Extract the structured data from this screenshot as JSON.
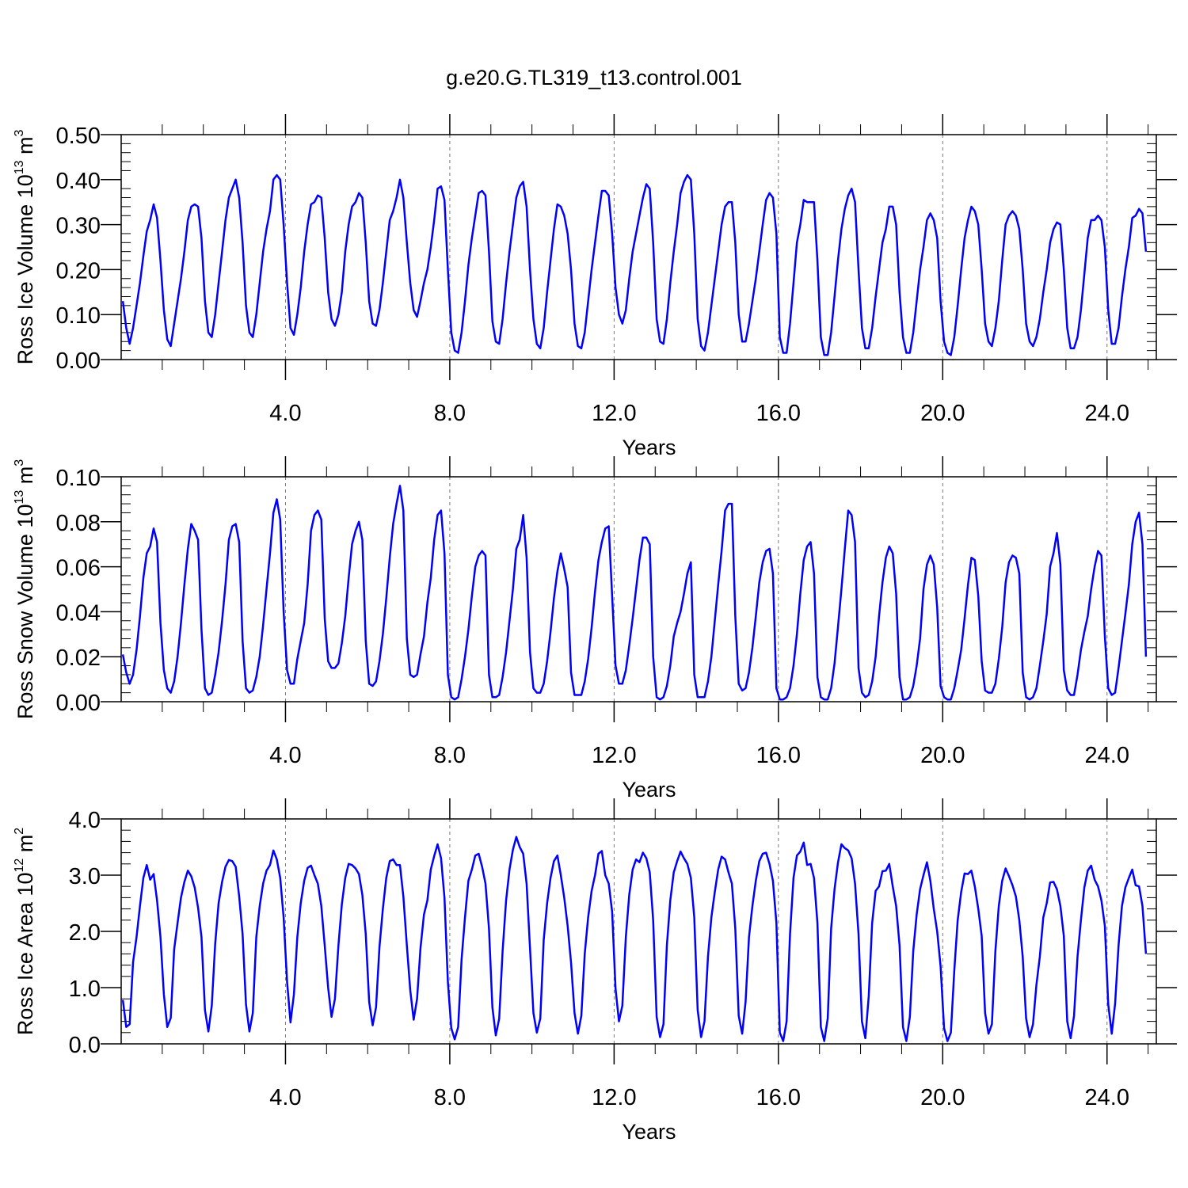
{
  "title": "g.e20.G.TL319_t13.control.001",
  "line_color": "#0000ff",
  "chart_data": [
    {
      "type": "line",
      "ylabel_main": "Ross Ice Volume 10",
      "ylabel_exp": "13",
      "ylabel_unit": " m",
      "ylabel_unit_exp": "3",
      "xlabel": "Years",
      "xlim": [
        0,
        25.2
      ],
      "ylim": [
        0,
        0.5
      ],
      "x_ticks": [
        4,
        8,
        12,
        16,
        20,
        24
      ],
      "x_tick_labels": [
        "4.0",
        "8.0",
        "12.0",
        "16.0",
        "20.0",
        "24.0"
      ],
      "y_ticks": [
        0,
        0.1,
        0.2,
        0.3,
        0.4,
        0.5
      ],
      "y_tick_labels": [
        "0.00",
        "0.10",
        "0.20",
        "0.30",
        "0.40",
        "0.50"
      ],
      "x_start": 0.04,
      "x_step": 0.0833,
      "values": [
        0.13,
        0.07,
        0.035,
        0.07,
        0.12,
        0.17,
        0.23,
        0.285,
        0.31,
        0.345,
        0.315,
        0.22,
        0.11,
        0.045,
        0.03,
        0.08,
        0.13,
        0.18,
        0.24,
        0.31,
        0.34,
        0.345,
        0.34,
        0.27,
        0.13,
        0.06,
        0.05,
        0.1,
        0.17,
        0.24,
        0.31,
        0.36,
        0.38,
        0.4,
        0.36,
        0.26,
        0.12,
        0.06,
        0.05,
        0.1,
        0.17,
        0.24,
        0.29,
        0.33,
        0.4,
        0.41,
        0.4,
        0.3,
        0.17,
        0.07,
        0.055,
        0.1,
        0.16,
        0.24,
        0.3,
        0.345,
        0.35,
        0.365,
        0.36,
        0.27,
        0.15,
        0.09,
        0.075,
        0.1,
        0.15,
        0.24,
        0.3,
        0.34,
        0.35,
        0.37,
        0.36,
        0.26,
        0.13,
        0.08,
        0.075,
        0.11,
        0.17,
        0.24,
        0.31,
        0.33,
        0.36,
        0.4,
        0.36,
        0.26,
        0.17,
        0.11,
        0.095,
        0.13,
        0.17,
        0.2,
        0.25,
        0.31,
        0.38,
        0.385,
        0.355,
        0.2,
        0.06,
        0.02,
        0.015,
        0.06,
        0.13,
        0.21,
        0.27,
        0.32,
        0.37,
        0.375,
        0.365,
        0.24,
        0.085,
        0.04,
        0.035,
        0.09,
        0.17,
        0.24,
        0.3,
        0.36,
        0.385,
        0.395,
        0.34,
        0.2,
        0.09,
        0.035,
        0.025,
        0.07,
        0.15,
        0.22,
        0.29,
        0.345,
        0.34,
        0.32,
        0.28,
        0.2,
        0.08,
        0.03,
        0.025,
        0.06,
        0.13,
        0.2,
        0.26,
        0.32,
        0.375,
        0.375,
        0.365,
        0.28,
        0.16,
        0.1,
        0.08,
        0.11,
        0.18,
        0.24,
        0.28,
        0.32,
        0.36,
        0.39,
        0.38,
        0.26,
        0.09,
        0.04,
        0.035,
        0.09,
        0.17,
        0.24,
        0.3,
        0.37,
        0.395,
        0.41,
        0.4,
        0.28,
        0.09,
        0.03,
        0.02,
        0.06,
        0.12,
        0.18,
        0.24,
        0.3,
        0.34,
        0.35,
        0.35,
        0.26,
        0.1,
        0.04,
        0.04,
        0.08,
        0.13,
        0.18,
        0.24,
        0.3,
        0.355,
        0.37,
        0.36,
        0.28,
        0.05,
        0.015,
        0.015,
        0.08,
        0.17,
        0.26,
        0.3,
        0.355,
        0.35,
        0.35,
        0.35,
        0.22,
        0.05,
        0.01,
        0.01,
        0.06,
        0.14,
        0.22,
        0.29,
        0.335,
        0.365,
        0.38,
        0.35,
        0.2,
        0.07,
        0.025,
        0.025,
        0.07,
        0.14,
        0.2,
        0.26,
        0.29,
        0.34,
        0.34,
        0.3,
        0.15,
        0.05,
        0.015,
        0.015,
        0.06,
        0.13,
        0.2,
        0.25,
        0.31,
        0.325,
        0.31,
        0.27,
        0.13,
        0.04,
        0.015,
        0.01,
        0.05,
        0.12,
        0.2,
        0.27,
        0.31,
        0.34,
        0.33,
        0.3,
        0.2,
        0.08,
        0.04,
        0.03,
        0.07,
        0.13,
        0.22,
        0.3,
        0.32,
        0.33,
        0.32,
        0.29,
        0.2,
        0.08,
        0.04,
        0.03,
        0.05,
        0.09,
        0.15,
        0.2,
        0.26,
        0.29,
        0.305,
        0.3,
        0.2,
        0.07,
        0.025,
        0.025,
        0.05,
        0.11,
        0.19,
        0.27,
        0.31,
        0.31,
        0.32,
        0.31,
        0.25,
        0.11,
        0.035,
        0.035,
        0.07,
        0.14,
        0.2,
        0.25,
        0.315,
        0.32,
        0.335,
        0.325,
        0.24
      ]
    },
    {
      "type": "line",
      "ylabel_main": "Ross Snow Volume 10",
      "ylabel_exp": "13",
      "ylabel_unit": " m",
      "ylabel_unit_exp": "3",
      "xlabel": "Years",
      "xlim": [
        0,
        25.2
      ],
      "ylim": [
        0,
        0.1
      ],
      "x_ticks": [
        4,
        8,
        12,
        16,
        20,
        24
      ],
      "x_tick_labels": [
        "4.0",
        "8.0",
        "12.0",
        "16.0",
        "20.0",
        "24.0"
      ],
      "y_ticks": [
        0,
        0.02,
        0.04,
        0.06,
        0.08,
        0.1
      ],
      "y_tick_labels": [
        "0.00",
        "0.02",
        "0.04",
        "0.06",
        "0.08",
        "0.10"
      ],
      "x_start": 0.04,
      "x_step": 0.0833,
      "values": [
        0.021,
        0.013,
        0.008,
        0.012,
        0.023,
        0.038,
        0.055,
        0.066,
        0.069,
        0.077,
        0.071,
        0.035,
        0.014,
        0.006,
        0.004,
        0.009,
        0.02,
        0.035,
        0.052,
        0.068,
        0.079,
        0.076,
        0.072,
        0.032,
        0.006,
        0.003,
        0.004,
        0.012,
        0.022,
        0.036,
        0.052,
        0.072,
        0.078,
        0.079,
        0.071,
        0.027,
        0.006,
        0.004,
        0.005,
        0.011,
        0.02,
        0.034,
        0.05,
        0.066,
        0.084,
        0.09,
        0.081,
        0.04,
        0.014,
        0.008,
        0.008,
        0.019,
        0.027,
        0.035,
        0.052,
        0.076,
        0.083,
        0.085,
        0.081,
        0.037,
        0.018,
        0.015,
        0.015,
        0.017,
        0.026,
        0.038,
        0.055,
        0.07,
        0.076,
        0.08,
        0.072,
        0.027,
        0.008,
        0.007,
        0.009,
        0.018,
        0.03,
        0.046,
        0.064,
        0.079,
        0.088,
        0.096,
        0.085,
        0.028,
        0.012,
        0.011,
        0.012,
        0.021,
        0.029,
        0.044,
        0.055,
        0.072,
        0.083,
        0.085,
        0.066,
        0.012,
        0.002,
        0.001,
        0.002,
        0.01,
        0.02,
        0.032,
        0.047,
        0.06,
        0.065,
        0.067,
        0.065,
        0.012,
        0.002,
        0.002,
        0.003,
        0.011,
        0.022,
        0.036,
        0.05,
        0.068,
        0.072,
        0.083,
        0.064,
        0.022,
        0.006,
        0.004,
        0.004,
        0.008,
        0.018,
        0.031,
        0.046,
        0.058,
        0.066,
        0.059,
        0.051,
        0.013,
        0.003,
        0.003,
        0.003,
        0.009,
        0.019,
        0.033,
        0.049,
        0.063,
        0.071,
        0.077,
        0.078,
        0.047,
        0.016,
        0.008,
        0.008,
        0.014,
        0.025,
        0.037,
        0.05,
        0.063,
        0.073,
        0.073,
        0.07,
        0.02,
        0.002,
        0.001,
        0.002,
        0.007,
        0.016,
        0.029,
        0.035,
        0.04,
        0.048,
        0.057,
        0.062,
        0.012,
        0.002,
        0.002,
        0.002,
        0.009,
        0.02,
        0.036,
        0.052,
        0.067,
        0.085,
        0.088,
        0.088,
        0.038,
        0.008,
        0.005,
        0.006,
        0.013,
        0.024,
        0.038,
        0.053,
        0.062,
        0.067,
        0.068,
        0.057,
        0.006,
        0.001,
        0.001,
        0.002,
        0.006,
        0.016,
        0.03,
        0.048,
        0.063,
        0.069,
        0.071,
        0.057,
        0.011,
        0.002,
        0.001,
        0.001,
        0.006,
        0.017,
        0.033,
        0.05,
        0.068,
        0.085,
        0.083,
        0.071,
        0.015,
        0.004,
        0.002,
        0.003,
        0.009,
        0.02,
        0.038,
        0.053,
        0.064,
        0.069,
        0.066,
        0.048,
        0.011,
        0.001,
        0.001,
        0.002,
        0.007,
        0.016,
        0.028,
        0.05,
        0.061,
        0.065,
        0.061,
        0.042,
        0.007,
        0.002,
        0.001,
        0.001,
        0.006,
        0.014,
        0.023,
        0.037,
        0.052,
        0.064,
        0.063,
        0.047,
        0.018,
        0.005,
        0.004,
        0.004,
        0.008,
        0.019,
        0.033,
        0.053,
        0.062,
        0.065,
        0.064,
        0.057,
        0.013,
        0.002,
        0.001,
        0.002,
        0.006,
        0.016,
        0.027,
        0.039,
        0.06,
        0.066,
        0.075,
        0.061,
        0.014,
        0.005,
        0.003,
        0.003,
        0.012,
        0.023,
        0.031,
        0.038,
        0.05,
        0.06,
        0.067,
        0.065,
        0.029,
        0.006,
        0.003,
        0.004,
        0.015,
        0.027,
        0.039,
        0.052,
        0.07,
        0.08,
        0.084,
        0.07,
        0.02
      ]
    },
    {
      "type": "line",
      "ylabel_main": "Ross Ice Area 10",
      "ylabel_exp": "12",
      "ylabel_unit": " m",
      "ylabel_unit_exp": "2",
      "xlabel": "Years",
      "xlim": [
        0,
        25.2
      ],
      "ylim": [
        0,
        4
      ],
      "x_ticks": [
        4,
        8,
        12,
        16,
        20,
        24
      ],
      "x_tick_labels": [
        "4.0",
        "8.0",
        "12.0",
        "16.0",
        "20.0",
        "24.0"
      ],
      "y_ticks": [
        0,
        1,
        2,
        3,
        4
      ],
      "y_tick_labels": [
        "0.0",
        "1.0",
        "2.0",
        "3.0",
        "4.0"
      ],
      "x_start": 0.04,
      "x_step": 0.0833,
      "values": [
        0.78,
        0.3,
        0.35,
        1.45,
        1.9,
        2.45,
        2.95,
        3.18,
        2.92,
        3.02,
        2.55,
        1.9,
        0.88,
        0.3,
        0.46,
        1.68,
        2.15,
        2.6,
        2.88,
        3.08,
        2.98,
        2.78,
        2.42,
        1.9,
        0.6,
        0.22,
        0.68,
        1.78,
        2.5,
        2.88,
        3.15,
        3.27,
        3.25,
        3.15,
        2.62,
        1.95,
        0.7,
        0.22,
        0.55,
        1.9,
        2.45,
        2.85,
        3.08,
        3.18,
        3.44,
        3.28,
        2.95,
        2.25,
        1.1,
        0.38,
        0.88,
        1.9,
        2.5,
        2.9,
        3.13,
        3.17,
        3.0,
        2.85,
        2.45,
        1.75,
        1.0,
        0.48,
        0.8,
        1.75,
        2.48,
        2.95,
        3.2,
        3.18,
        3.12,
        3.02,
        2.65,
        1.95,
        0.75,
        0.33,
        0.65,
        1.72,
        2.4,
        2.95,
        3.25,
        3.28,
        3.18,
        3.18,
        2.62,
        1.75,
        0.95,
        0.43,
        0.8,
        1.7,
        2.3,
        2.55,
        3.1,
        3.34,
        3.55,
        3.3,
        2.6,
        1.1,
        0.28,
        0.08,
        0.3,
        1.5,
        2.25,
        2.9,
        3.1,
        3.35,
        3.38,
        3.15,
        2.85,
        2.05,
        0.65,
        0.15,
        0.45,
        1.65,
        2.55,
        3.1,
        3.45,
        3.68,
        3.5,
        3.38,
        2.85,
        1.7,
        0.55,
        0.2,
        0.45,
        1.85,
        2.5,
        2.95,
        3.25,
        3.35,
        3.0,
        2.6,
        2.1,
        1.45,
        0.55,
        0.18,
        0.5,
        1.6,
        2.25,
        2.72,
        3.0,
        3.38,
        3.43,
        3.0,
        2.85,
        2.35,
        0.98,
        0.4,
        0.68,
        1.9,
        2.65,
        3.1,
        3.28,
        3.23,
        3.4,
        3.3,
        3.05,
        2.2,
        0.48,
        0.12,
        0.35,
        1.75,
        2.55,
        3.05,
        3.25,
        3.42,
        3.3,
        3.2,
        2.95,
        2.25,
        0.6,
        0.12,
        0.4,
        1.55,
        2.25,
        2.7,
        3.1,
        3.33,
        3.28,
        3.05,
        2.85,
        2.05,
        0.5,
        0.18,
        0.75,
        1.9,
        2.45,
        2.9,
        3.25,
        3.38,
        3.4,
        3.2,
        2.9,
        2.15,
        0.2,
        0.05,
        0.4,
        1.95,
        2.95,
        3.35,
        3.42,
        3.58,
        3.18,
        3.2,
        2.95,
        2.15,
        0.3,
        0.05,
        0.45,
        2.05,
        2.75,
        3.22,
        3.55,
        3.48,
        3.44,
        3.3,
        2.85,
        1.95,
        0.4,
        0.1,
        0.85,
        2.15,
        2.72,
        2.8,
        3.07,
        3.08,
        3.2,
        2.8,
        2.45,
        1.75,
        0.3,
        0.05,
        0.48,
        1.65,
        2.3,
        2.75,
        3.0,
        3.23,
        2.9,
        2.4,
        2.0,
        1.38,
        0.28,
        0.05,
        0.2,
        1.3,
        2.2,
        2.7,
        3.03,
        3.02,
        3.08,
        2.8,
        2.4,
        1.92,
        0.55,
        0.18,
        0.35,
        1.65,
        2.45,
        2.9,
        3.12,
        2.98,
        2.82,
        2.62,
        2.2,
        1.55,
        0.45,
        0.12,
        0.35,
        1.05,
        1.55,
        2.25,
        2.5,
        2.87,
        2.88,
        2.75,
        2.45,
        1.92,
        0.4,
        0.1,
        0.5,
        1.55,
        2.2,
        2.78,
        3.08,
        3.17,
        2.92,
        2.8,
        2.55,
        2.1,
        0.7,
        0.18,
        0.72,
        1.75,
        2.45,
        2.78,
        2.95,
        3.1,
        2.82,
        2.8,
        2.45,
        1.6
      ]
    }
  ]
}
